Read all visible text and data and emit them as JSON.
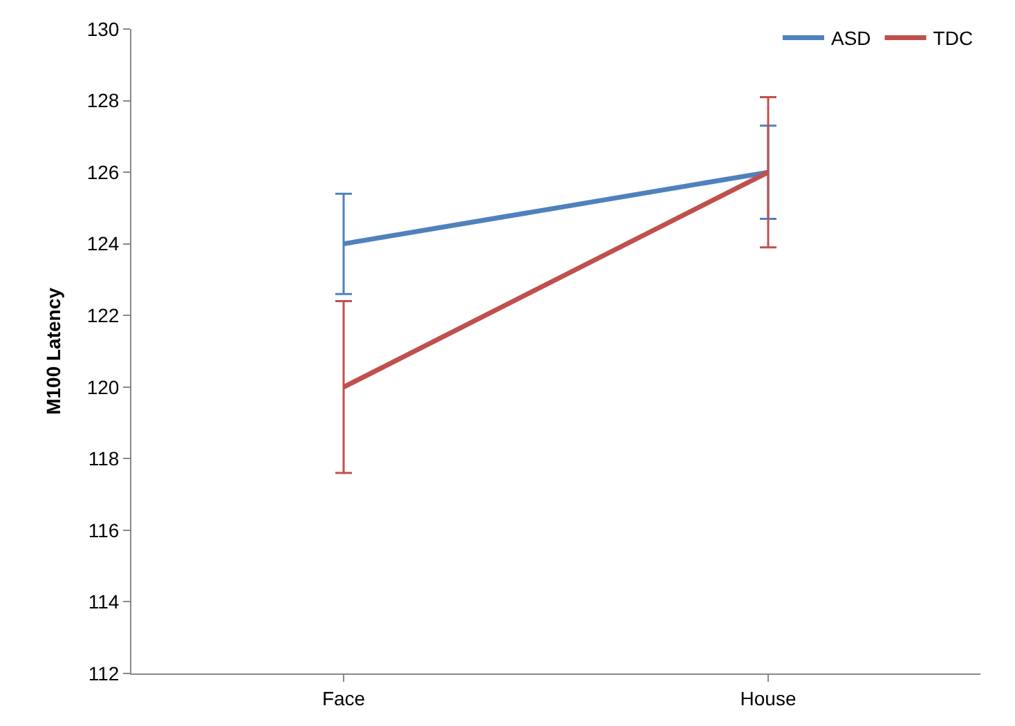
{
  "chart_data": {
    "type": "line",
    "ylabel": "M100 Latency",
    "categories": [
      "Face",
      "House"
    ],
    "series": [
      {
        "name": "ASD",
        "color": "#4f81bd",
        "values": [
          124,
          126
        ],
        "errors": [
          1.4,
          1.3
        ]
      },
      {
        "name": "TDC",
        "color": "#c0504d",
        "values": [
          120,
          126
        ],
        "errors": [
          2.4,
          2.1
        ]
      }
    ],
    "ylim": [
      112,
      130
    ],
    "yticks": [
      112,
      114,
      116,
      118,
      120,
      122,
      124,
      126,
      128,
      130
    ],
    "grid": false,
    "legend": "top right",
    "marker": "none",
    "line_style": "solid"
  }
}
